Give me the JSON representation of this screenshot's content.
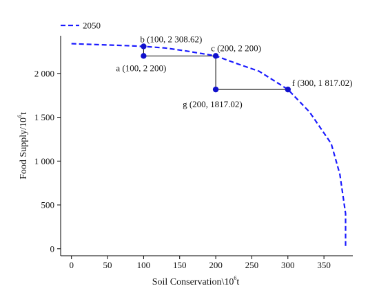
{
  "chart_data": {
    "type": "line",
    "legend": {
      "placement": "top-left",
      "entries": [
        "2050"
      ]
    },
    "series": [
      {
        "name": "2050",
        "style": "dashed",
        "color": "#1a1aff",
        "points": [
          [
            0,
            2340
          ],
          [
            25,
            2332
          ],
          [
            50,
            2325
          ],
          [
            75,
            2318
          ],
          [
            100,
            2308.62
          ],
          [
            130,
            2290
          ],
          [
            160,
            2255
          ],
          [
            200,
            2200
          ],
          [
            230,
            2110
          ],
          [
            260,
            2025
          ],
          [
            300,
            1817.02
          ],
          [
            330,
            1560
          ],
          [
            360,
            1200
          ],
          [
            372,
            850
          ],
          [
            380,
            400
          ],
          [
            380,
            0
          ]
        ]
      }
    ],
    "annotated_points": [
      {
        "id": "b",
        "x": 100,
        "y": 2308.62,
        "label": "b (100, 2 308.62)"
      },
      {
        "id": "a",
        "x": 100,
        "y": 2200,
        "label": "a (100, 2 200)"
      },
      {
        "id": "c",
        "x": 200,
        "y": 2200,
        "label": "c (200, 2 200)"
      },
      {
        "id": "g",
        "x": 200,
        "y": 1817.02,
        "label": "g (200, 1817.02)"
      },
      {
        "id": "f",
        "x": 300,
        "y": 1817.02,
        "label": "f (300, 1 817.02)"
      }
    ],
    "connectors": [
      [
        "b",
        "a"
      ],
      [
        "a",
        "c"
      ],
      [
        "c",
        "g"
      ],
      [
        "g",
        "f"
      ]
    ],
    "x_axis": {
      "label": "Soil Conservation\\10",
      "label_sup": "6",
      "label_unit": "t",
      "range": [
        -15,
        390
      ],
      "ticks": [
        0,
        50,
        100,
        150,
        200,
        250,
        300,
        350
      ],
      "tick_labels": [
        "0",
        "50",
        "100",
        "150",
        "200",
        "250",
        "300",
        "350"
      ]
    },
    "y_axis": {
      "label": "Food Supply/10",
      "label_sup": "6",
      "label_unit": "t",
      "range": [
        -80,
        2430
      ],
      "ticks": [
        0,
        500,
        1000,
        1500,
        2000
      ],
      "tick_labels": [
        "0",
        "500",
        "1 000",
        "1 500",
        "2 000"
      ]
    },
    "grid": false,
    "colors": {
      "series": "#1a1aff",
      "point": "#1111cc",
      "connector": "#000000",
      "axis": "#000000"
    }
  }
}
